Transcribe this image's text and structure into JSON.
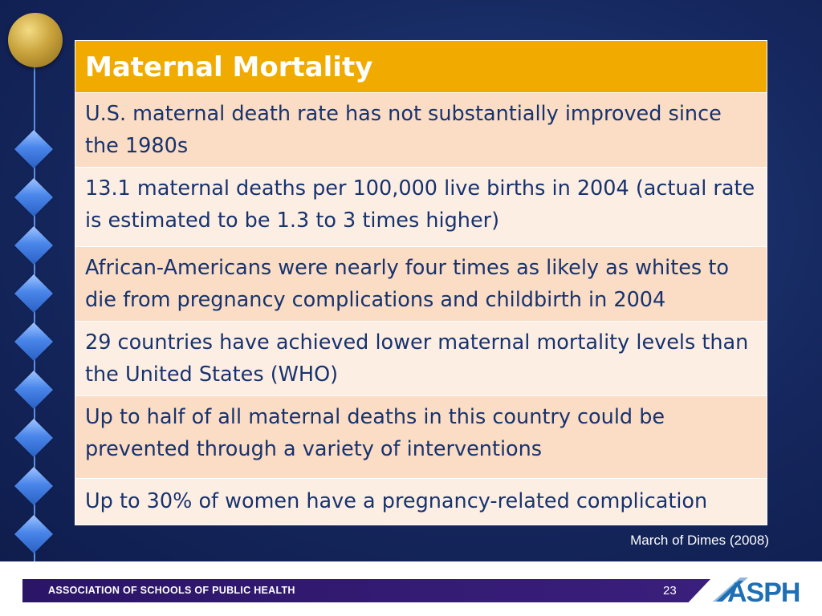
{
  "slide": {
    "title": "Maternal Mortality",
    "rows": [
      "U.S. maternal death rate has not substantially improved since the 1980s",
      "13.1 maternal deaths per 100,000 live births in 2004 (actual rate is estimated to be 1.3 to 3 times higher)",
      "African-Americans were nearly four times as likely as whites to die from pregnancy complications and childbirth in 2004",
      "29 countries have achieved lower maternal mortality levels than the United States (WHO)",
      "Up to half of all maternal deaths in this country could be prevented through a variety of interventions",
      "Up to 30% of women have a pregnancy-related complication"
    ],
    "citation": "March of Dimes (2008)"
  },
  "footer": {
    "organization": "ASSOCIATION OF SCHOOLS OF PUBLIC HEALTH",
    "page_number": "23",
    "logo_text": "ASPH"
  },
  "colors": {
    "background": "#15275e",
    "header_fill": "#f0aa00",
    "row_odd": "#fbdcc5",
    "row_even": "#fdeee4",
    "body_text": "#17336e",
    "footer_bar": "#2b1567",
    "logo_blue": "#1f6fb5"
  },
  "icons": [
    "gold-ball-icon",
    "blue-diamond-icon"
  ]
}
